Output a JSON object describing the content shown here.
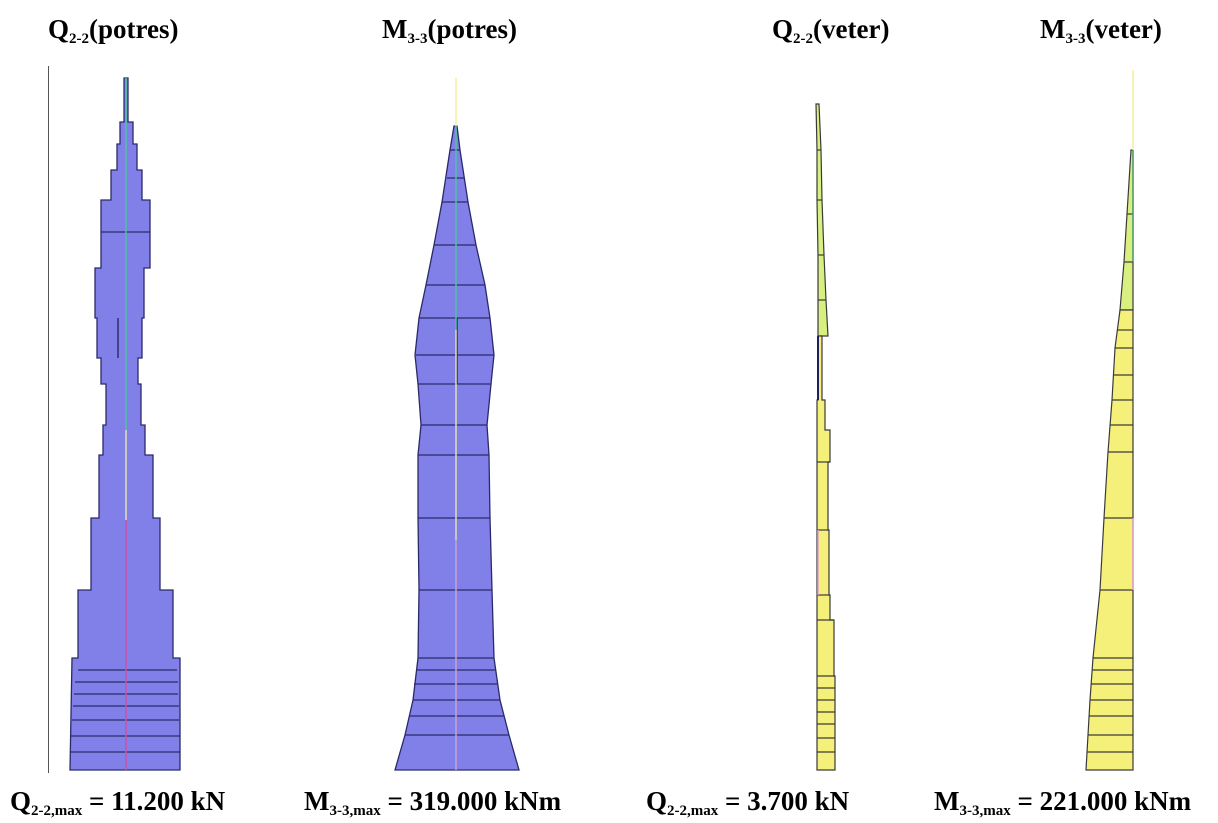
{
  "diagrams": [
    {
      "title": {
        "main": "Q",
        "sub": "2-2",
        "rest": "(potres)"
      },
      "caption": {
        "main": "Q",
        "sub": "2-2,max",
        "rest": " = 11.200 kN"
      },
      "fill": "#8080e8"
    },
    {
      "title": {
        "main": "M",
        "sub": "3-3",
        "rest": "(potres)"
      },
      "caption": {
        "main": "M",
        "sub": "3-3,max",
        "rest": " = 319.000 kNm"
      },
      "fill": "#8080e8"
    },
    {
      "title": {
        "main": "Q",
        "sub": "2-2",
        "rest": "(veter)"
      },
      "caption": {
        "main": "Q",
        "sub": "2-2,max",
        "rest": " = 3.700 kN"
      },
      "fill": "#f5f07a"
    },
    {
      "title": {
        "main": "M",
        "sub": "3-3",
        "rest": "(veter)"
      },
      "caption": {
        "main": "M",
        "sub": "3-3,max",
        "rest": " = 221.000 kNm"
      },
      "fill": "#f5f07a"
    }
  ]
}
